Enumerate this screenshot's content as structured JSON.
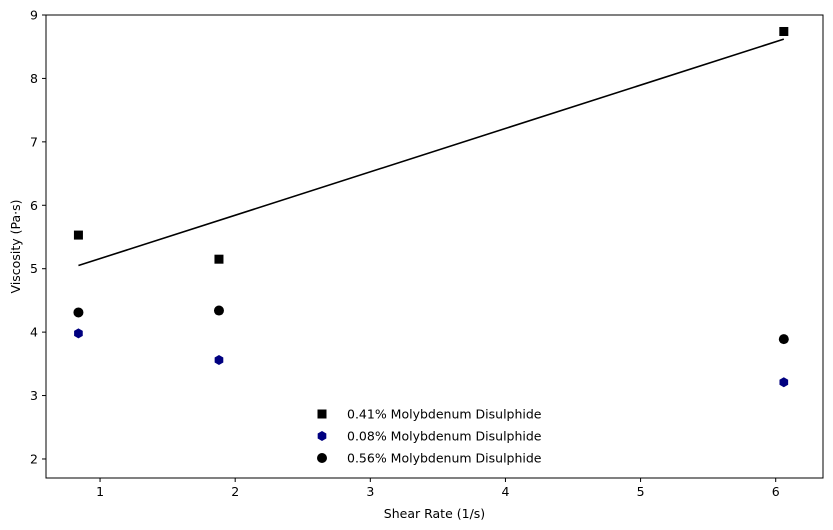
{
  "chart_data": {
    "type": "scatter",
    "xlabel": "Shear Rate (1/s)",
    "ylabel": "Viscosity (Pa·s)",
    "xlim": [
      0.6,
      6.35
    ],
    "ylim": [
      1.7,
      9.0
    ],
    "xticks": [
      1,
      2,
      3,
      4,
      5,
      6
    ],
    "yticks": [
      2,
      3,
      4,
      5,
      6,
      7,
      8,
      9
    ],
    "grid": false,
    "legend_position": "bottom-center",
    "series": [
      {
        "name": "0.41% Molybdenum Disulphide",
        "marker": "square",
        "color": "#000000",
        "points": [
          [
            0.84,
            5.53
          ],
          [
            1.88,
            5.15
          ],
          [
            6.06,
            8.74
          ]
        ]
      },
      {
        "name": "0.08% Molybdenum Disulphide",
        "marker": "hexagon",
        "color": "#000080",
        "points": [
          [
            0.84,
            3.98
          ],
          [
            1.88,
            3.56
          ],
          [
            6.06,
            3.21
          ]
        ]
      },
      {
        "name": "0.56% Molybdenum Disulphide",
        "marker": "circle",
        "color": "#000000",
        "points": [
          [
            0.84,
            4.31
          ],
          [
            1.88,
            4.34
          ],
          [
            6.06,
            3.89
          ]
        ]
      }
    ],
    "trendline": {
      "color": "#000000",
      "points": [
        [
          0.84,
          5.05
        ],
        [
          6.06,
          8.62
        ]
      ]
    }
  }
}
